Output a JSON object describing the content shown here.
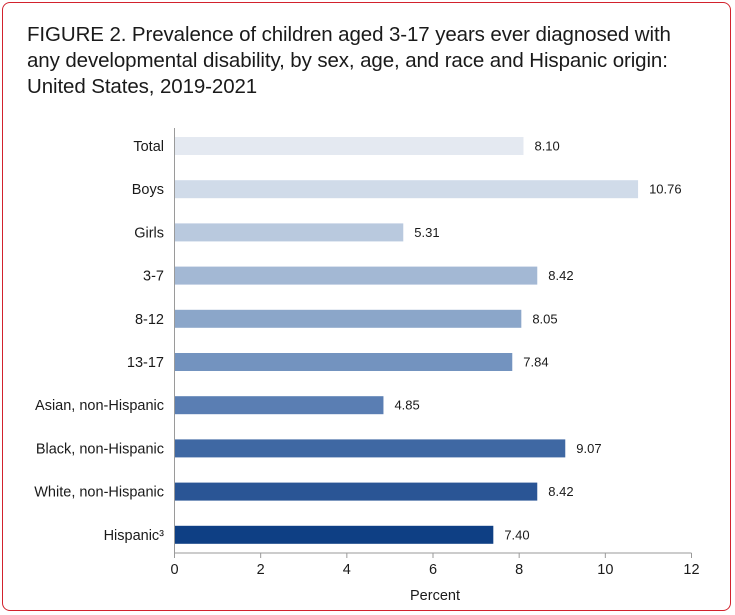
{
  "chart_data": {
    "type": "bar",
    "orientation": "horizontal",
    "title": "FIGURE 2. Prevalence of children aged 3-17 years ever diagnosed with any developmental disability, by sex, age, and race and Hispanic origin: United States, 2019-2021",
    "xlabel": "Percent",
    "ylabel": "",
    "xlim": [
      0,
      12
    ],
    "xticks": [
      0,
      2,
      4,
      6,
      8,
      10,
      12
    ],
    "grid": false,
    "categories": [
      "Total",
      "Boys",
      "Girls",
      "3-7",
      "8-12",
      "13-17",
      "Asian, non-Hispanic",
      "Black, non-Hispanic",
      "White, non-Hispanic",
      "Hispanic³"
    ],
    "values": [
      8.1,
      10.76,
      5.31,
      8.42,
      8.05,
      7.84,
      4.85,
      9.07,
      8.42,
      7.4
    ],
    "value_labels": [
      "8.10",
      "10.76",
      "5.31",
      "8.42",
      "8.05",
      "7.84",
      "4.85",
      "9.07",
      "8.42",
      "7.40"
    ],
    "colors": [
      "#e4e9f1",
      "#d0dbe9",
      "#b9c9de",
      "#a3b8d4",
      "#8ba6c9",
      "#7393bf",
      "#5a7eb3",
      "#3f68a3",
      "#2a5595",
      "#0e3f84"
    ]
  }
}
